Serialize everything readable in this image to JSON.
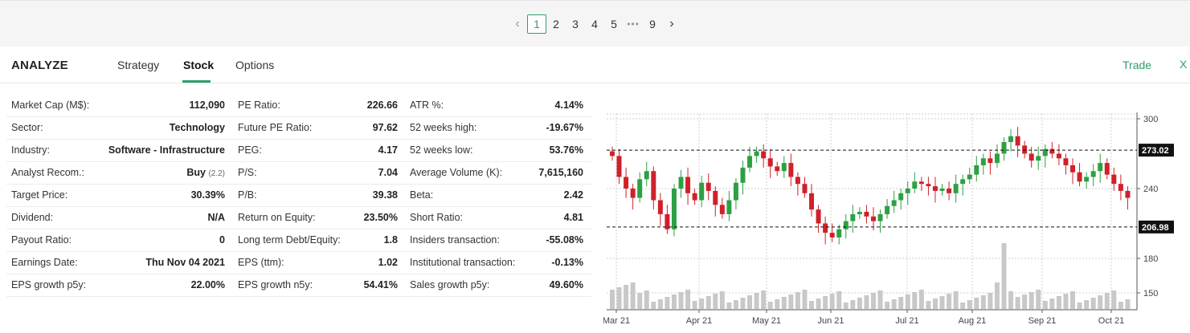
{
  "pagination": {
    "prev_icon": "chevron-left-icon",
    "pages": [
      "1",
      "2",
      "3",
      "4",
      "5"
    ],
    "ellipsis": "•••",
    "last_page": "9",
    "next_icon": "chevron-right-icon",
    "current": "1"
  },
  "header": {
    "brand": "ANALYZE",
    "tabs": [
      "Strategy",
      "Stock",
      "Options"
    ],
    "active_tab": "Stock",
    "trade_label": "Trade",
    "close_label": "X"
  },
  "stats": {
    "col1": [
      {
        "label": "Market Cap (M$):",
        "value": "112,090"
      },
      {
        "label": "Sector:",
        "value": "Technology"
      },
      {
        "label": "Industry:",
        "value": "Software - Infrastructure"
      },
      {
        "label": "Analyst Recom.:",
        "value": "Buy",
        "sub": "(2.2)"
      },
      {
        "label": "Target Price:",
        "value": "30.39%"
      },
      {
        "label": "Dividend:",
        "value": "N/A"
      },
      {
        "label": "Payout Ratio:",
        "value": "0"
      },
      {
        "label": "Earnings Date:",
        "value": "Thu Nov 04 2021"
      },
      {
        "label": "EPS growth p5y:",
        "value": "22.00%"
      }
    ],
    "col2": [
      {
        "label": "PE Ratio:",
        "value": "226.66"
      },
      {
        "label": "Future PE Ratio:",
        "value": "97.62"
      },
      {
        "label": "PEG:",
        "value": "4.17"
      },
      {
        "label": "P/S:",
        "value": "7.04"
      },
      {
        "label": "P/B:",
        "value": "39.38"
      },
      {
        "label": "Return on Equity:",
        "value": "23.50%"
      },
      {
        "label": "Long term Debt/Equity:",
        "value": "1.8"
      },
      {
        "label": "EPS (ttm):",
        "value": "1.02"
      },
      {
        "label": "EPS growth n5y:",
        "value": "54.41%"
      }
    ],
    "col3": [
      {
        "label": "ATR %:",
        "value": "4.14%"
      },
      {
        "label": "52 weeks high:",
        "value": "-19.67%"
      },
      {
        "label": "52 weeks low:",
        "value": "53.76%"
      },
      {
        "label": "Average Volume (K):",
        "value": "7,615,160"
      },
      {
        "label": "Beta:",
        "value": "2.42"
      },
      {
        "label": "Short Ratio:",
        "value": "4.81"
      },
      {
        "label": "Insiders transaction:",
        "value": "-55.08%"
      },
      {
        "label": "Institutional transaction:",
        "value": "-0.13%"
      },
      {
        "label": "Sales growth p5y:",
        "value": "49.60%"
      }
    ]
  },
  "chart": {
    "x_ticks": [
      "Mar 21",
      "Apr 21",
      "May 21",
      "Jun 21",
      "Jul 21",
      "Aug 21",
      "Sep 21",
      "Oct 21"
    ],
    "y_ticks": [
      "300",
      "240",
      "180",
      "150"
    ],
    "upper_level": "273.02",
    "lower_level": "206.98",
    "colors": {
      "up": "#2ea043",
      "down": "#d0202a",
      "volume": "#c8c8c8",
      "grid": "#cfcfcf"
    }
  },
  "chart_data": {
    "type": "candlestick",
    "x_range": [
      "Mar 21",
      "Oct 21"
    ],
    "price_ticks": [
      300,
      240
    ],
    "levels": [
      273.02,
      206.98
    ],
    "close": [
      268,
      250,
      240,
      232,
      248,
      255,
      230,
      218,
      205,
      240,
      250,
      236,
      230,
      245,
      238,
      226,
      218,
      230,
      245,
      258,
      268,
      272,
      266,
      259,
      255,
      262,
      250,
      244,
      236,
      222,
      210,
      202,
      198,
      205,
      212,
      218,
      220,
      216,
      212,
      218,
      225,
      230,
      236,
      240,
      246,
      244,
      242,
      238,
      240,
      236,
      244,
      248,
      252,
      260,
      266,
      262,
      270,
      280,
      285,
      277,
      270,
      264,
      268,
      274,
      270,
      266,
      260,
      254,
      246,
      250,
      255,
      262,
      252,
      244,
      238,
      232
    ]
  }
}
